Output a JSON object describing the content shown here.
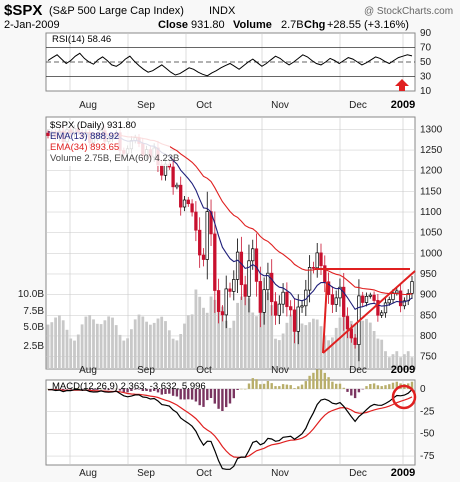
{
  "header": {
    "symbol": "$SPX",
    "name": "(S&P 500 Large Cap Index)",
    "exchange": "INDX",
    "date": "2-Jan-2009",
    "close_label": "Close",
    "close_value": "931.80",
    "volume_label": "Volume",
    "volume_value": "2.7B",
    "change_label": "Chg",
    "change_value": "+28.55 (+3.16%)",
    "watermark": "@ StockCharts.com"
  },
  "colors": {
    "bg_panel": "#ffffff",
    "grid": "#c8c8c8",
    "candle_up": "#000000",
    "candle_down": "#c8102e",
    "ema13": "#1f1f7a",
    "ema34": "#e02020",
    "volume": "#c8c8c8",
    "trendline": "#e02020",
    "rsi": "#000000",
    "macd": "#000000",
    "macd_signal": "#e02020",
    "histogram": "#7a3560",
    "highlight": "#e02020"
  },
  "chart_data": [
    {
      "type": "line",
      "panel": "rsi",
      "label": "RSI(14) 58.46",
      "ylim": [
        10,
        90
      ],
      "yticks": [
        90,
        70,
        50,
        30,
        10
      ],
      "reference_lines": [
        70,
        50,
        30
      ],
      "series": [
        {
          "name": "RSI(14)",
          "values": [
            52,
            56,
            60,
            54,
            48,
            52,
            58,
            62,
            55,
            50,
            47,
            53,
            57,
            52,
            46,
            44,
            48,
            54,
            58,
            51,
            45,
            40,
            36,
            38,
            42,
            46,
            41,
            36,
            32,
            34,
            38,
            42,
            40,
            36,
            33,
            31,
            35,
            38,
            42,
            45,
            48,
            44,
            40,
            45,
            50,
            54,
            49,
            44,
            48,
            53,
            58,
            55,
            50,
            46,
            50,
            55,
            60,
            57,
            52,
            48,
            46,
            50,
            55,
            52,
            48,
            52,
            56,
            54,
            50,
            46,
            49,
            53,
            57,
            55,
            51,
            48,
            52,
            56,
            58,
            60,
            58.46
          ]
        }
      ],
      "annotation": "up-arrow"
    },
    {
      "type": "candlestick",
      "panel": "price",
      "label": "$SPX (Daily) 931.80",
      "ylim": [
        720,
        1330
      ],
      "yticks": [
        1300,
        1250,
        1200,
        1150,
        1100,
        1050,
        1000,
        950,
        900,
        850,
        800,
        750
      ],
      "volume_ticks": [
        "10.0B",
        "7.5B",
        "5.0B",
        "2.5B"
      ],
      "months": [
        "Aug",
        "Sep",
        "Oct",
        "Nov",
        "Dec",
        "2009"
      ],
      "closes": [
        1285,
        1292,
        1281,
        1296,
        1270,
        1299,
        1289,
        1302,
        1293,
        1282,
        1293,
        1268,
        1278,
        1283,
        1297,
        1271,
        1277,
        1285,
        1292,
        1249,
        1242,
        1253,
        1273,
        1280,
        1266,
        1236,
        1251,
        1233,
        1255,
        1214,
        1189,
        1216,
        1209,
        1161,
        1165,
        1112,
        1129,
        1120,
        1100,
        1056,
        996,
        985,
        1101,
        1047,
        910,
        859,
        851,
        914,
        908,
        937,
        1003,
        924,
        896,
        982,
        1011,
        932,
        857,
        912,
        952,
        883,
        850,
        877,
        906,
        871,
        863,
        811,
        870,
        873,
        911,
        966,
        965,
        1001,
        970,
        931,
        900,
        876,
        892,
        918,
        847,
        817,
        795,
        779,
        897,
        881,
        896,
        899,
        886,
        850,
        856,
        880,
        888,
        904,
        909,
        873,
        885,
        903,
        931.8
      ],
      "series": [
        {
          "name": "EMA(13) 888.92",
          "last": 888.92
        },
        {
          "name": "EMA(34) 893.65",
          "last": 893.65
        },
        {
          "name": "Volume 2.75B, EMA(60) 4.23B",
          "last": 2.75
        }
      ]
    },
    {
      "type": "line",
      "panel": "macd",
      "label": "MACD(12,26,9) 2.363, -3.632, 5.996",
      "ylim": [
        -85,
        10
      ],
      "yticks": [
        0,
        -25,
        -50,
        -75
      ],
      "series": [
        {
          "name": "MACD(12,26,9)",
          "last": 2.363
        },
        {
          "name": "Signal",
          "last": -3.632
        },
        {
          "name": "Histogram",
          "last": 5.996
        }
      ]
    }
  ]
}
